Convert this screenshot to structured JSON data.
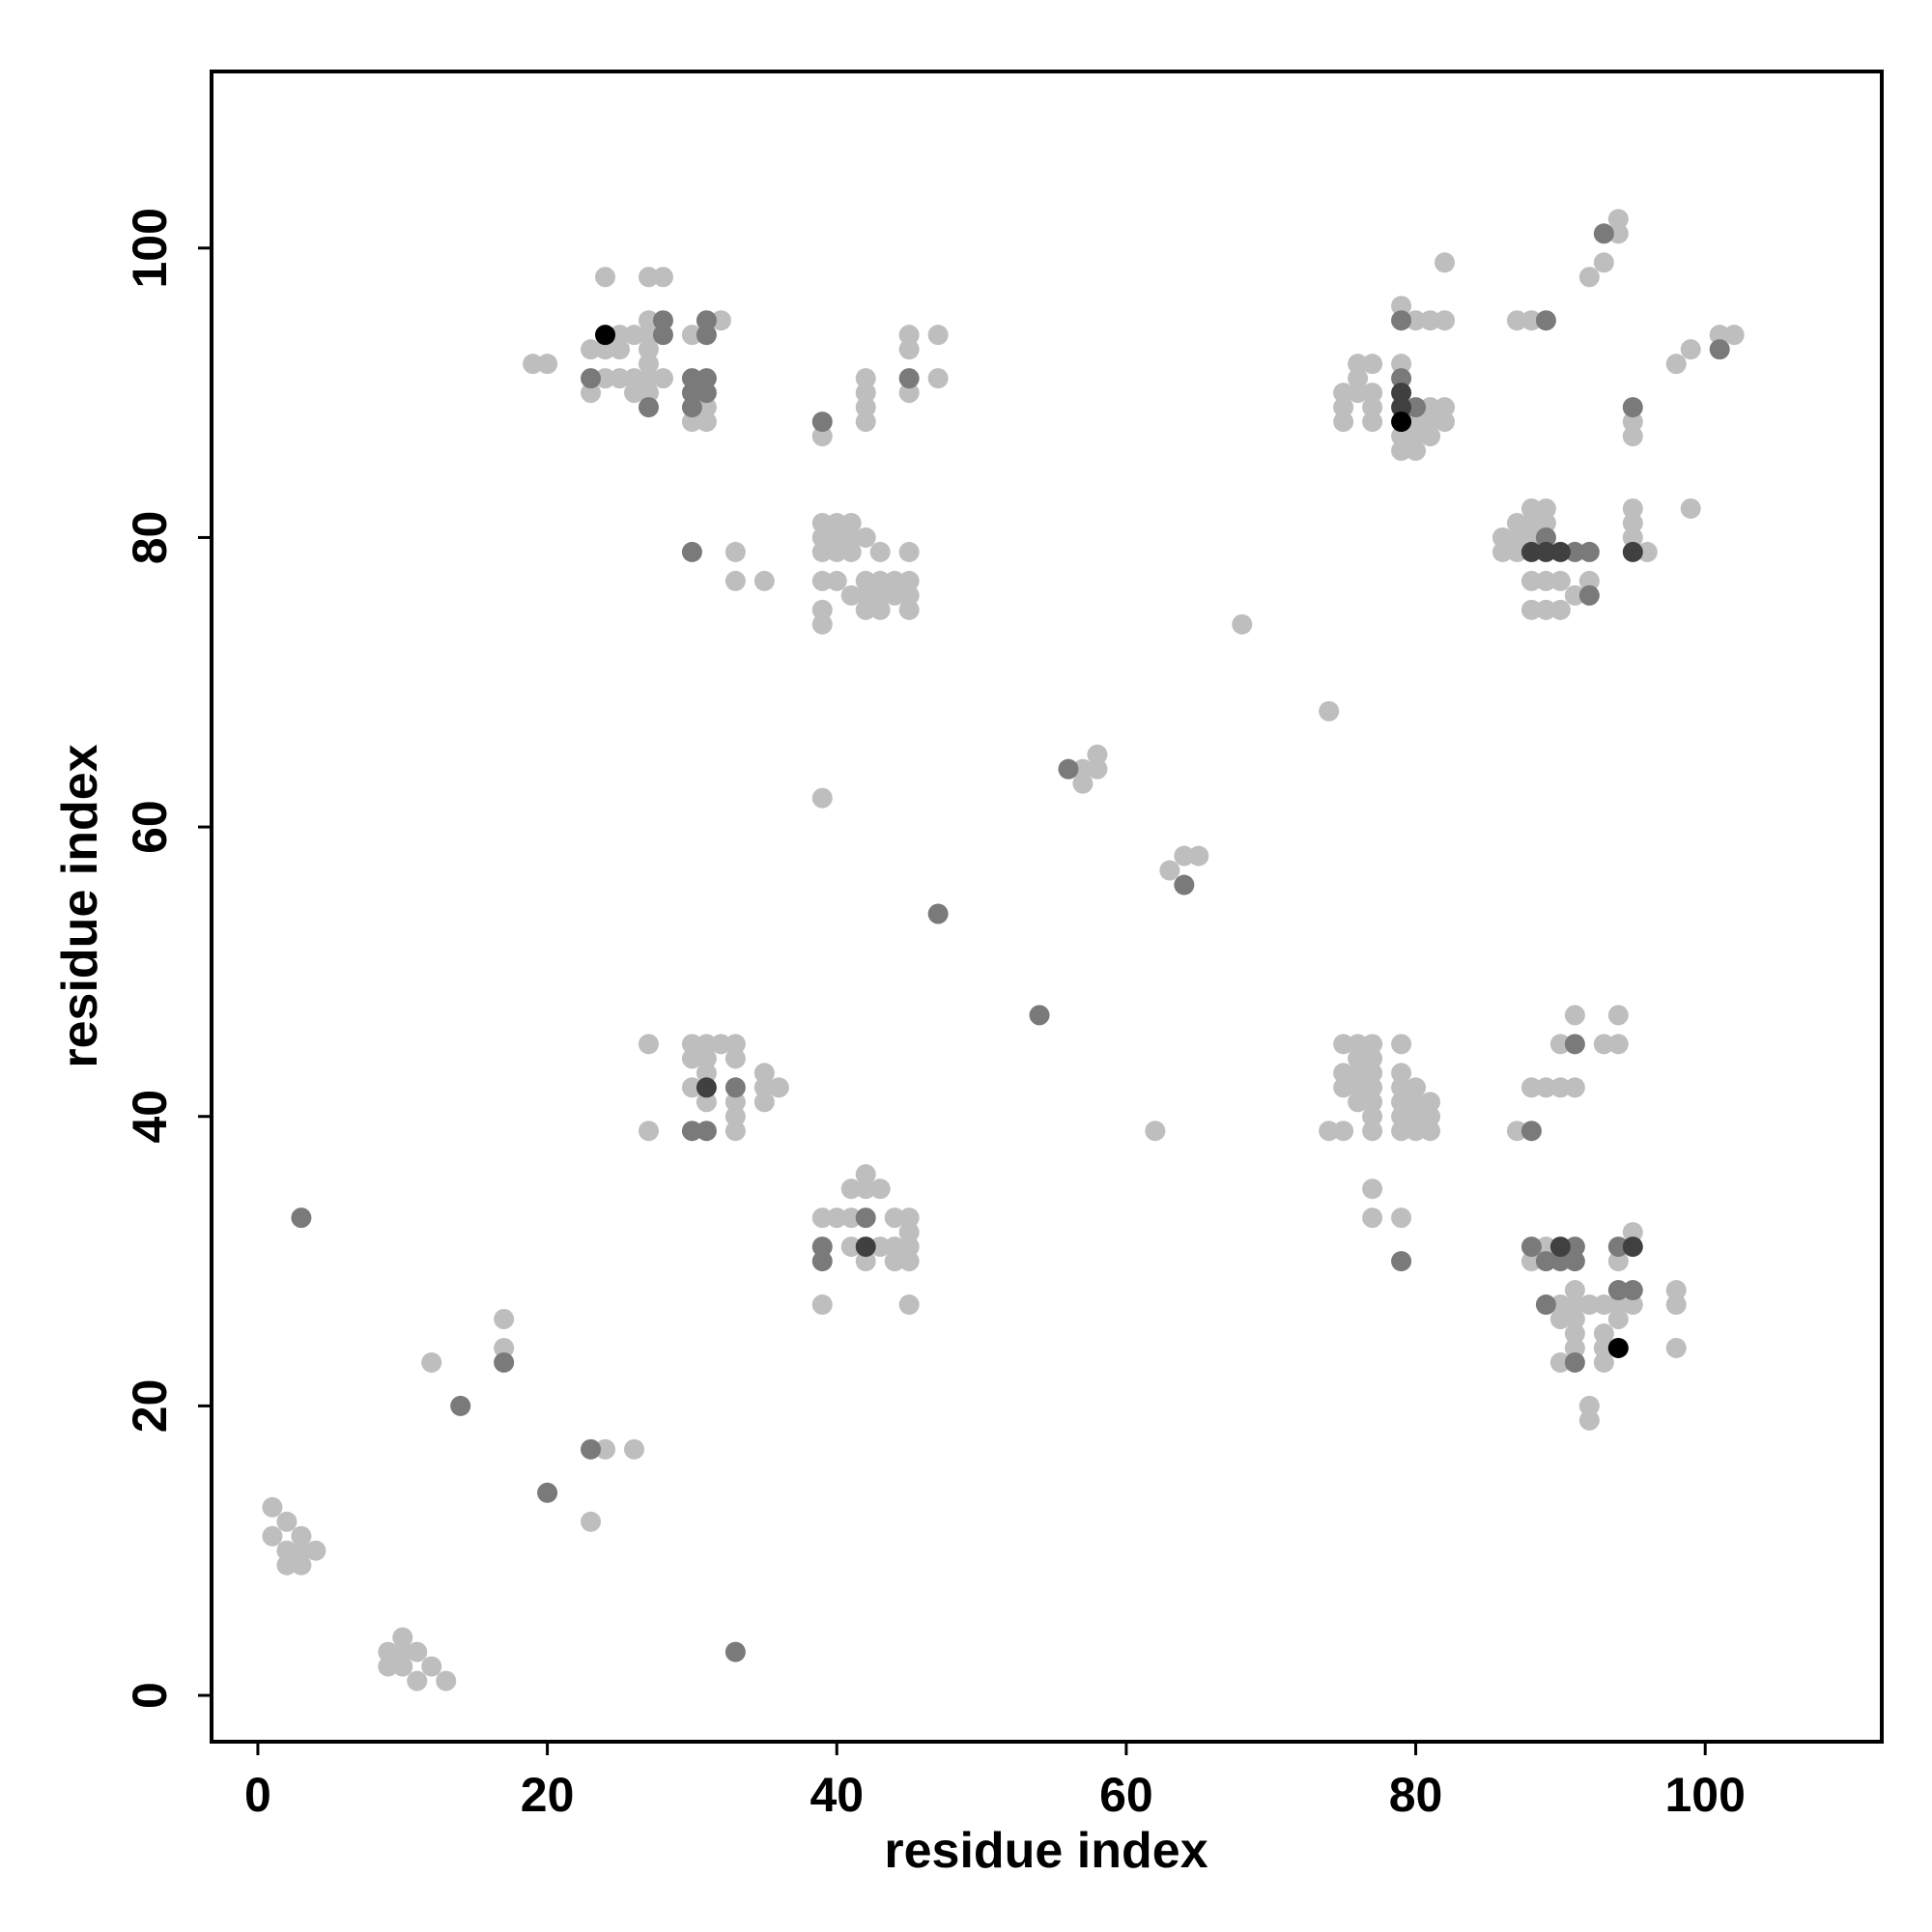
{
  "chart_data": {
    "type": "scatter",
    "x_label": "residue index",
    "y_label": "residue index",
    "xlim": [
      -3.2,
      112.2
    ],
    "ylim": [
      -3.2,
      112.2
    ],
    "xticks": [
      0,
      20,
      40,
      60,
      80,
      100
    ],
    "yticks": [
      0,
      20,
      40,
      60,
      80,
      100
    ],
    "grid": false,
    "series": [
      {
        "color": "#bebebe",
        "x": [
          1,
          1,
          2,
          2,
          3,
          3,
          4,
          2,
          3,
          9,
          9,
          10,
          10,
          10,
          11,
          11,
          12,
          13,
          12,
          17,
          17,
          24,
          26,
          23,
          24,
          27,
          28,
          27,
          32,
          25,
          26,
          27,
          30,
          23,
          24,
          25,
          27,
          19,
          20,
          27,
          24,
          25,
          26,
          27,
          28,
          23,
          26,
          27,
          31,
          30,
          31,
          45,
          47,
          45,
          42,
          47,
          42,
          45,
          42,
          42,
          39,
          39,
          40,
          41,
          39,
          40,
          41,
          42,
          39,
          40,
          41,
          43,
          45,
          39,
          40,
          42,
          43,
          44,
          45,
          41,
          42,
          43,
          44,
          45,
          39,
          42,
          43,
          45,
          39,
          33,
          33,
          35,
          39,
          57,
          57,
          58,
          58,
          63,
          64,
          65,
          68,
          74,
          62,
          27,
          30,
          31,
          32,
          33,
          30,
          31,
          33,
          31,
          35,
          30,
          35,
          36,
          31,
          33,
          35,
          33,
          27,
          33,
          42,
          41,
          42,
          43,
          39,
          40,
          41,
          44,
          45,
          45,
          41,
          43,
          44,
          45,
          42,
          44,
          45,
          39,
          45,
          79,
          80,
          81,
          82,
          76,
          77,
          79,
          76,
          75,
          76,
          77,
          75,
          77,
          81,
          82,
          75,
          77,
          80,
          81,
          82,
          79,
          80,
          81,
          79,
          80,
          82,
          87,
          88,
          88,
          89,
          95,
          87,
          88,
          89,
          95,
          86,
          87,
          88,
          95,
          86,
          87,
          96,
          88,
          89,
          90,
          92,
          91,
          88,
          89,
          90,
          95,
          95,
          99,
          94,
          94,
          93,
          92,
          99,
          98,
          101,
          102,
          75,
          76,
          77,
          79,
          76,
          77,
          75,
          76,
          77,
          79,
          75,
          76,
          77,
          79,
          80,
          76,
          77,
          79,
          80,
          81,
          77,
          79,
          80,
          81,
          74,
          75,
          77,
          79,
          80,
          81,
          77,
          77,
          79,
          91,
          94,
          90,
          93,
          94,
          88,
          89,
          90,
          91,
          87,
          89,
          88,
          94,
          95,
          91,
          98,
          90,
          91,
          92,
          93,
          94,
          95,
          98,
          90,
          91,
          94,
          91,
          93,
          91,
          93,
          98,
          90,
          93,
          92,
          92
        ],
        "values": [
          13,
          11,
          12,
          10,
          11,
          10,
          10,
          9,
          9,
          3,
          2,
          4,
          3,
          2,
          3,
          1,
          2,
          1,
          23,
          26,
          24,
          17,
          17,
          12,
          98,
          98,
          98,
          95,
          95,
          94,
          94,
          94,
          94,
          93,
          93,
          93,
          93,
          92,
          92,
          92,
          91,
          91,
          91,
          91,
          91,
          90,
          90,
          90,
          89,
          88,
          88,
          94,
          94,
          93,
          91,
          91,
          90,
          90,
          89,
          88,
          87,
          81,
          81,
          81,
          80,
          80,
          80,
          80,
          79,
          79,
          79,
          79,
          79,
          77,
          77,
          77,
          77,
          77,
          77,
          76,
          76,
          76,
          76,
          76,
          75,
          75,
          75,
          75,
          74,
          79,
          77,
          77,
          62,
          63,
          64,
          64,
          65,
          57,
          58,
          58,
          74,
          68,
          39,
          45,
          45,
          45,
          45,
          45,
          44,
          44,
          44,
          43,
          43,
          42,
          42,
          42,
          41,
          41,
          41,
          40,
          39,
          39,
          36,
          35,
          35,
          35,
          33,
          33,
          33,
          33,
          33,
          32,
          31,
          31,
          31,
          31,
          30,
          30,
          30,
          27,
          27,
          96,
          95,
          95,
          95,
          92,
          92,
          92,
          91,
          90,
          90,
          90,
          89,
          89,
          89,
          89,
          88,
          88,
          88,
          88,
          88,
          87,
          87,
          87,
          86,
          86,
          99,
          95,
          95,
          82,
          82,
          82,
          81,
          81,
          81,
          81,
          80,
          80,
          80,
          80,
          79,
          79,
          79,
          77,
          77,
          77,
          77,
          76,
          75,
          75,
          75,
          88,
          87,
          82,
          102,
          101,
          99,
          98,
          93,
          92,
          94,
          94,
          45,
          45,
          45,
          45,
          44,
          44,
          43,
          43,
          43,
          43,
          42,
          42,
          42,
          42,
          42,
          41,
          41,
          41,
          41,
          41,
          40,
          40,
          40,
          40,
          39,
          39,
          39,
          39,
          39,
          39,
          35,
          33,
          33,
          47,
          47,
          45,
          45,
          45,
          42,
          42,
          42,
          42,
          39,
          31,
          30,
          30,
          32,
          28,
          28,
          27,
          27,
          27,
          27,
          27,
          27,
          27,
          26,
          26,
          26,
          25,
          25,
          24,
          24,
          24,
          23,
          23,
          20,
          19
        ]
      },
      {
        "color": "#7a7a7a",
        "x": [
          3,
          14,
          17,
          20,
          23,
          33,
          28,
          31,
          28,
          31,
          23,
          30,
          31,
          30,
          31,
          27,
          30,
          45,
          39,
          30,
          47,
          54,
          56,
          64,
          33,
          30,
          31,
          42,
          39,
          39,
          79,
          79,
          80,
          89,
          89,
          91,
          92,
          92,
          95,
          93,
          101,
          79,
          91,
          88,
          88,
          91,
          94,
          89,
          90,
          91,
          94,
          95,
          89,
          91
        ],
        "values": [
          33,
          20,
          23,
          14,
          17,
          3,
          95,
          95,
          94,
          94,
          91,
          91,
          91,
          90,
          90,
          89,
          89,
          91,
          88,
          79,
          54,
          47,
          64,
          56,
          42,
          39,
          39,
          33,
          31,
          30,
          95,
          91,
          89,
          95,
          80,
          79,
          79,
          76,
          89,
          101,
          93,
          30,
          45,
          39,
          31,
          31,
          31,
          30,
          30,
          30,
          28,
          28,
          27,
          23
        ]
      },
      {
        "color": "#404040",
        "x": [
          31,
          42,
          79,
          79,
          88,
          89,
          90,
          95,
          90,
          95
        ],
        "values": [
          42,
          31,
          90,
          89,
          79,
          79,
          79,
          79,
          31,
          31
        ]
      },
      {
        "color": "#000000",
        "x": [
          24,
          79,
          94
        ],
        "values": [
          94,
          88,
          24
        ]
      }
    ]
  }
}
